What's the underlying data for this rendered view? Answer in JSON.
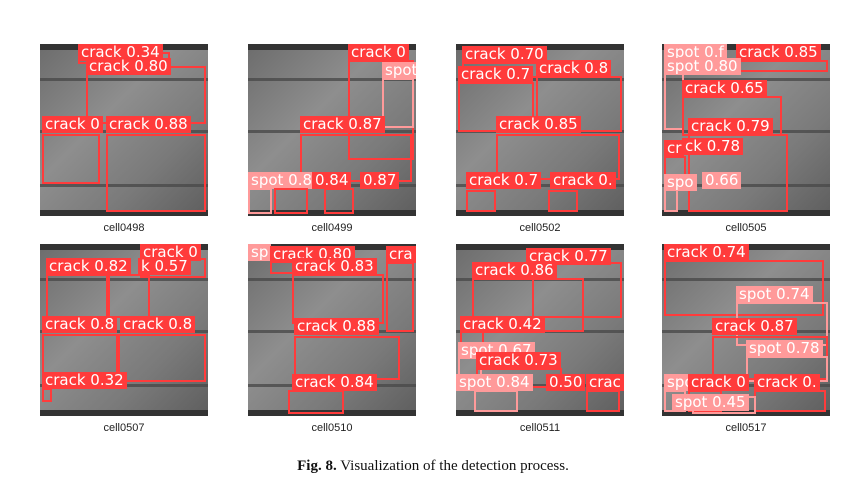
{
  "figure": {
    "label": "Fig. 8.",
    "caption": "Visualization of the detection process."
  },
  "panels": [
    {
      "name": "cell0498",
      "labels": [
        "crack 0.34",
        "crack 0.80",
        "crack 0",
        "crack 0.88"
      ]
    },
    {
      "name": "cell0499",
      "labels": [
        "crack 0",
        "spot",
        "crack 0.87",
        "spot 0.86",
        "0.84",
        "0.87"
      ]
    },
    {
      "name": "cell0502",
      "labels": [
        "crack 0.70",
        "crack 0.7",
        "crack 0.8",
        "crack 0.85",
        "crack 0.7",
        "crack 0."
      ]
    },
    {
      "name": "cell0505",
      "labels": [
        "spot 0.f",
        "crack 0.85",
        "spot 0.80",
        "crack 0.65",
        "crack 0.79",
        "ck 0.78",
        "cr",
        "spo",
        "0.66"
      ]
    },
    {
      "name": "cell0507",
      "labels": [
        "crack 0",
        "crack 0.82",
        "k 0.57",
        "crack 0.8",
        "crack 0.8",
        "crack 0.32"
      ]
    },
    {
      "name": "cell0510",
      "labels": [
        "sp",
        "crack 0.80",
        "crack 0.83",
        "cra",
        "crack 0.88",
        "crack 0.84"
      ]
    },
    {
      "name": "cell0511",
      "labels": [
        "crack 0.77",
        "crack 0.86",
        "crack 0.42",
        "spot 0.67",
        "crack 0.73",
        "spot 0.84",
        "0.50",
        "crac"
      ]
    },
    {
      "name": "cell0517",
      "labels": [
        "crack 0.74",
        "spot 0.74",
        "crack 0.87",
        "spot 0.78",
        "spo",
        "crack 0",
        "crack 0.",
        "spot 0.45"
      ]
    }
  ]
}
